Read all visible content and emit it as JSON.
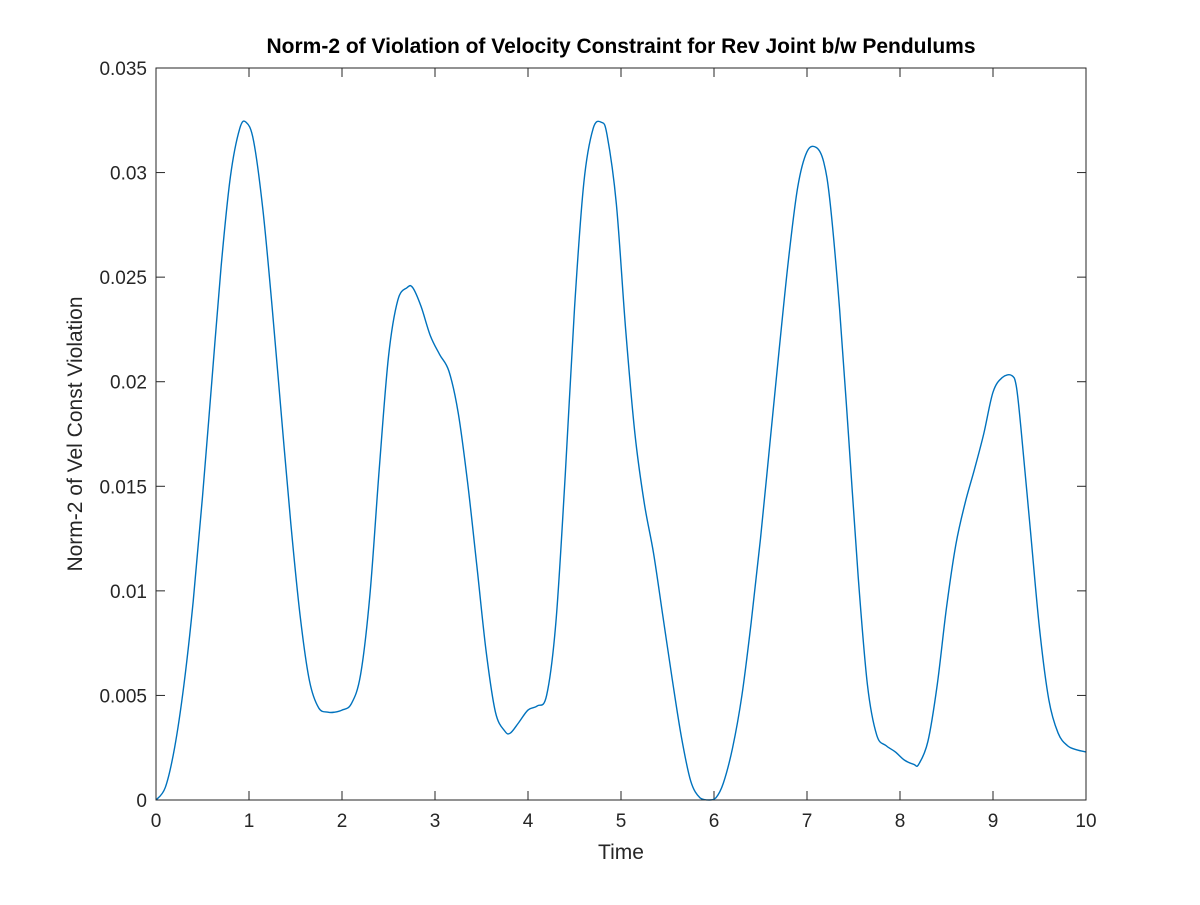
{
  "chart_data": {
    "type": "line",
    "title": "Norm-2 of Violation of Velocity Constraint for Rev Joint b/w Pendulums",
    "xlabel": "Time",
    "ylabel": "Norm-2 of Vel Const Violation",
    "xlim": [
      0,
      10
    ],
    "ylim": [
      0,
      0.035
    ],
    "xticks": [
      0,
      1,
      2,
      3,
      4,
      5,
      6,
      7,
      8,
      9,
      10
    ],
    "xtick_labels": [
      "0",
      "1",
      "2",
      "3",
      "4",
      "5",
      "6",
      "7",
      "8",
      "9",
      "10"
    ],
    "yticks": [
      0,
      0.005,
      0.01,
      0.015,
      0.02,
      0.025,
      0.03,
      0.035
    ],
    "ytick_labels": [
      "0",
      "0.005",
      "0.01",
      "0.015",
      "0.02",
      "0.025",
      "0.03",
      "0.035"
    ],
    "grid": false,
    "legend": "none",
    "box": true,
    "line_color": "#0072BD",
    "series": [
      {
        "x": [
          0,
          0.1,
          0.2,
          0.3,
          0.4,
          0.5,
          0.6,
          0.7,
          0.8,
          0.9,
          0.97,
          1.05,
          1.15,
          1.25,
          1.35,
          1.45,
          1.55,
          1.65,
          1.75,
          1.85,
          1.92,
          2.0,
          2.1,
          2.2,
          2.3,
          2.4,
          2.5,
          2.6,
          2.7,
          2.76,
          2.85,
          2.95,
          3.05,
          3.15,
          3.25,
          3.35,
          3.45,
          3.55,
          3.65,
          3.75,
          3.81,
          3.9,
          4.0,
          4.1,
          4.2,
          4.3,
          4.4,
          4.5,
          4.6,
          4.7,
          4.79,
          4.85,
          4.95,
          5.05,
          5.15,
          5.25,
          5.35,
          5.45,
          5.55,
          5.65,
          5.75,
          5.85,
          5.95,
          6.02,
          6.1,
          6.2,
          6.3,
          6.4,
          6.5,
          6.6,
          6.7,
          6.8,
          6.9,
          7.0,
          7.1,
          7.18,
          7.25,
          7.35,
          7.45,
          7.55,
          7.65,
          7.75,
          7.85,
          7.95,
          8.05,
          8.15,
          8.2,
          8.3,
          8.4,
          8.5,
          8.6,
          8.7,
          8.8,
          8.9,
          9.0,
          9.1,
          9.2,
          9.25,
          9.3,
          9.4,
          9.5,
          9.6,
          9.7,
          9.8,
          9.9,
          10.0
        ],
        "y": [
          0,
          0.0006,
          0.0025,
          0.0055,
          0.0095,
          0.0145,
          0.02,
          0.0255,
          0.0298,
          0.0321,
          0.0324,
          0.0315,
          0.0282,
          0.0235,
          0.0183,
          0.0132,
          0.0088,
          0.0057,
          0.0044,
          0.0042,
          0.0042,
          0.0043,
          0.0046,
          0.006,
          0.0098,
          0.0158,
          0.0212,
          0.0239,
          0.0245,
          0.0245,
          0.0236,
          0.0222,
          0.0213,
          0.0205,
          0.0185,
          0.0152,
          0.0112,
          0.0071,
          0.0042,
          0.0033,
          0.0032,
          0.0037,
          0.0043,
          0.0045,
          0.005,
          0.0085,
          0.0155,
          0.0235,
          0.0295,
          0.0321,
          0.0324,
          0.0318,
          0.0285,
          0.0225,
          0.0175,
          0.0142,
          0.0118,
          0.0088,
          0.0058,
          0.003,
          0.0009,
          0.0001,
          0,
          0.0001,
          0.0008,
          0.0025,
          0.005,
          0.0085,
          0.0125,
          0.017,
          0.0215,
          0.0258,
          0.0293,
          0.031,
          0.0312,
          0.0305,
          0.0285,
          0.0235,
          0.0172,
          0.0107,
          0.0055,
          0.0031,
          0.0026,
          0.0023,
          0.0019,
          0.0017,
          0.0017,
          0.0028,
          0.0055,
          0.0092,
          0.0122,
          0.0142,
          0.0158,
          0.0175,
          0.0195,
          0.0202,
          0.0203,
          0.0198,
          0.0178,
          0.013,
          0.0082,
          0.0048,
          0.0032,
          0.0026,
          0.0024,
          0.0023
        ]
      }
    ]
  }
}
